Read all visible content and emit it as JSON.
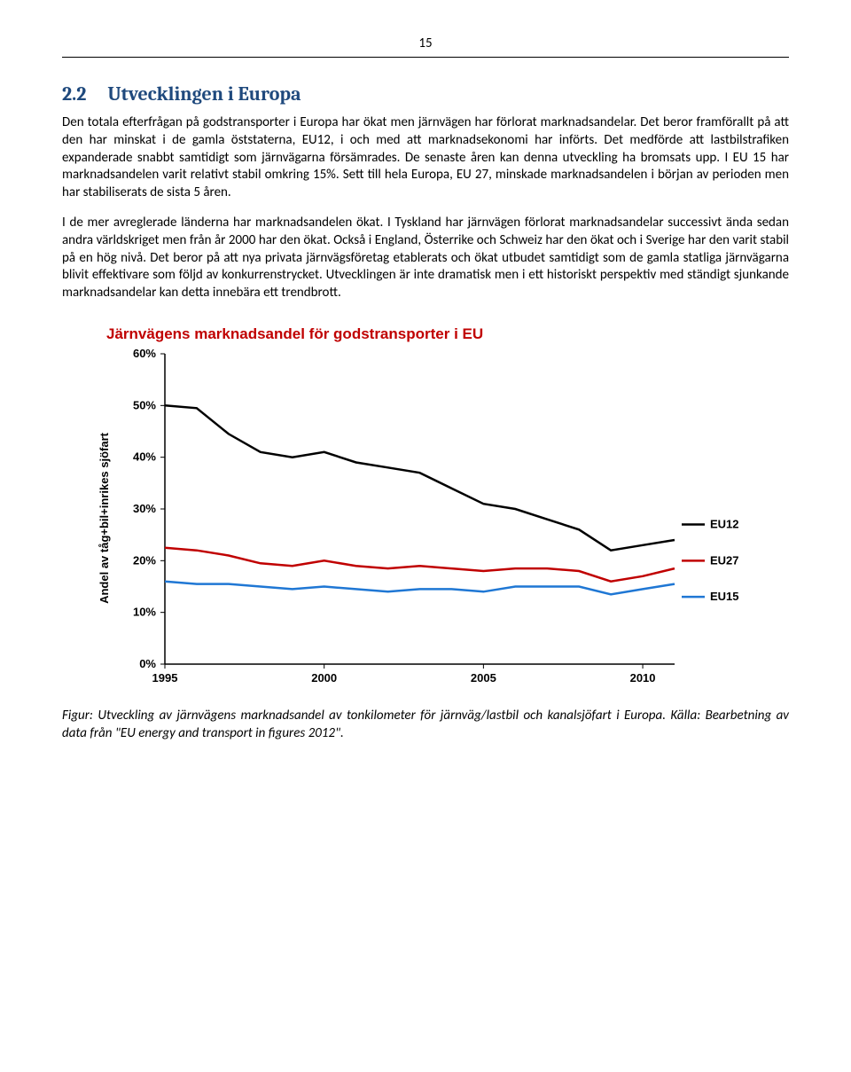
{
  "page_number": "15",
  "heading": {
    "number": "2.2",
    "title": "Utvecklingen i Europa"
  },
  "paragraphs": {
    "p1": "Den totala efterfrågan på godstransporter i Europa har ökat men järnvägen har förlorat marknadsandelar. Det beror framförallt på att den har minskat i de gamla öststaterna, EU12, i och med att marknadsekonomi har införts. Det medförde att lastbilstrafiken expanderade snabbt samtidigt som järnvägarna försämrades. De senaste åren kan denna utveckling ha bromsats upp. I EU 15 har marknadsandelen varit relativt stabil omkring 15%. Sett till hela Europa, EU 27, minskade marknadsandelen i början av perioden men har stabiliserats de sista 5 åren.",
    "p2": "I de mer avreglerade länderna har marknadsandelen ökat. I Tyskland har järnvägen förlorat marknadsandelar successivt ända sedan andra världskriget men från år 2000 har den ökat. Också i England, Österrike och Schweiz har den ökat och i Sverige har den varit stabil på en hög nivå. Det beror på att nya privata järnvägsföretag etablerats och ökat utbudet samtidigt som de gamla statliga järnvägarna blivit effektivare som följd av konkurrenstrycket. Utvecklingen är inte dramatisk men i ett historiskt perspektiv med ständigt sjunkande marknadsandelar kan detta innebära ett trendbrott."
  },
  "chart": {
    "type": "line",
    "title": "Järnvägens marknadsandel för godstransporter i EU",
    "title_color": "#c00000",
    "title_fontsize": 17,
    "ylabel": "Andel av tåg+bil+inrikes sjöfart",
    "yticks": [
      0,
      10,
      20,
      30,
      40,
      50,
      60
    ],
    "ytick_labels": [
      "0%",
      "10%",
      "20%",
      "30%",
      "40%",
      "50%",
      "60%"
    ],
    "ylim": [
      0,
      60
    ],
    "xticks": [
      1995,
      2000,
      2005,
      2010
    ],
    "xlim": [
      1995,
      2011
    ],
    "axis_color": "#000000",
    "tick_font_size": 13,
    "line_width": 2.5,
    "background": "#ffffff",
    "series": [
      {
        "name": "EU12",
        "color": "#000000",
        "legend_y": 27,
        "data": [
          {
            "x": 1995,
            "y": 50
          },
          {
            "x": 1996,
            "y": 49.5
          },
          {
            "x": 1997,
            "y": 44.5
          },
          {
            "x": 1998,
            "y": 41
          },
          {
            "x": 1999,
            "y": 40
          },
          {
            "x": 2000,
            "y": 41
          },
          {
            "x": 2001,
            "y": 39
          },
          {
            "x": 2002,
            "y": 38
          },
          {
            "x": 2003,
            "y": 37
          },
          {
            "x": 2004,
            "y": 34
          },
          {
            "x": 2005,
            "y": 31
          },
          {
            "x": 2006,
            "y": 30
          },
          {
            "x": 2007,
            "y": 28
          },
          {
            "x": 2008,
            "y": 26
          },
          {
            "x": 2009,
            "y": 22
          },
          {
            "x": 2010,
            "y": 23
          },
          {
            "x": 2011,
            "y": 24
          }
        ]
      },
      {
        "name": "EU27",
        "color": "#c00000",
        "legend_y": 20,
        "data": [
          {
            "x": 1995,
            "y": 22.5
          },
          {
            "x": 1996,
            "y": 22
          },
          {
            "x": 1997,
            "y": 21
          },
          {
            "x": 1998,
            "y": 19.5
          },
          {
            "x": 1999,
            "y": 19
          },
          {
            "x": 2000,
            "y": 20
          },
          {
            "x": 2001,
            "y": 19
          },
          {
            "x": 2002,
            "y": 18.5
          },
          {
            "x": 2003,
            "y": 19
          },
          {
            "x": 2004,
            "y": 18.5
          },
          {
            "x": 2005,
            "y": 18
          },
          {
            "x": 2006,
            "y": 18.5
          },
          {
            "x": 2007,
            "y": 18.5
          },
          {
            "x": 2008,
            "y": 18
          },
          {
            "x": 2009,
            "y": 16
          },
          {
            "x": 2010,
            "y": 17
          },
          {
            "x": 2011,
            "y": 18.5
          }
        ]
      },
      {
        "name": "EU15",
        "color": "#1f77d4",
        "legend_y": 13,
        "data": [
          {
            "x": 1995,
            "y": 16
          },
          {
            "x": 1996,
            "y": 15.5
          },
          {
            "x": 1997,
            "y": 15.5
          },
          {
            "x": 1998,
            "y": 15
          },
          {
            "x": 1999,
            "y": 14.5
          },
          {
            "x": 2000,
            "y": 15
          },
          {
            "x": 2001,
            "y": 14.5
          },
          {
            "x": 2002,
            "y": 14
          },
          {
            "x": 2003,
            "y": 14.5
          },
          {
            "x": 2004,
            "y": 14.5
          },
          {
            "x": 2005,
            "y": 14
          },
          {
            "x": 2006,
            "y": 15
          },
          {
            "x": 2007,
            "y": 15
          },
          {
            "x": 2008,
            "y": 15
          },
          {
            "x": 2009,
            "y": 13.5
          },
          {
            "x": 2010,
            "y": 14.5
          },
          {
            "x": 2011,
            "y": 15.5
          }
        ]
      }
    ]
  },
  "caption": "Figur: Utveckling av järnvägens marknadsandel av tonkilometer för järnväg/lastbil och kanalsjöfart i Europa. Källa: Bearbetning av data från \"EU energy and transport in figures 2012\"."
}
